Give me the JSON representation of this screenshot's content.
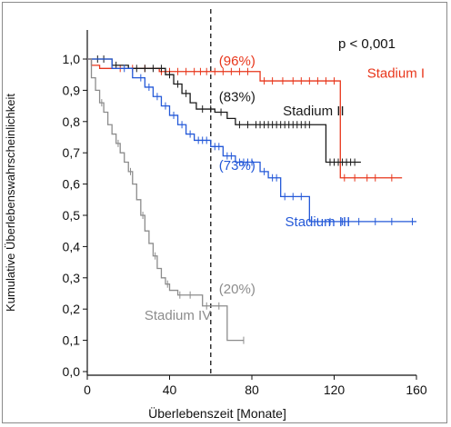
{
  "chart_data": {
    "type": "line",
    "subtype": "kaplan-meier survival curve",
    "xlabel": "Überlebenszeit [Monate]",
    "ylabel": "Kumulative Überlebenswahrscheinlichkeit",
    "xlim": [
      0,
      160
    ],
    "ylim": [
      0.0,
      1.0
    ],
    "x_ticks": [
      "0",
      "40",
      "80",
      "120",
      "160"
    ],
    "y_ticks": [
      "0,0",
      "0,1",
      "0,2",
      "0,3",
      "0,4",
      "0,5",
      "0,6",
      "0,7",
      "0,8",
      "0,9",
      "1,0"
    ],
    "grid": false,
    "reference_line": {
      "x": 60,
      "style": "dashed",
      "color": "#333333"
    },
    "p_value": "p < 0,001",
    "series": [
      {
        "name": "Stadium I",
        "color": "#e8361b",
        "label_pos": [
          150,
          0.94
        ],
        "annotation": {
          "text": "(96%)",
          "pos": [
            64,
            0.98
          ]
        },
        "steps": [
          [
            0,
            1.0
          ],
          [
            2,
            0.98
          ],
          [
            6,
            0.97
          ],
          [
            35,
            0.96
          ],
          [
            84,
            0.93
          ],
          [
            123,
            0.62
          ],
          [
            153,
            0.62
          ]
        ],
        "censor_x": [
          16,
          22,
          28,
          36,
          40,
          44,
          48,
          52,
          55,
          58,
          62,
          66,
          70,
          74,
          78,
          86,
          90,
          95,
          100,
          104,
          108,
          112,
          116,
          120,
          125,
          130,
          136,
          140,
          148
        ]
      },
      {
        "name": "Stadium II",
        "color": "#1a1a1a",
        "label_pos": [
          110,
          0.82
        ],
        "annotation": {
          "text": "(83%)",
          "pos": [
            64,
            0.865
          ]
        },
        "steps": [
          [
            0,
            1.0
          ],
          [
            12,
            0.98
          ],
          [
            20,
            0.97
          ],
          [
            38,
            0.95
          ],
          [
            42,
            0.92
          ],
          [
            46,
            0.89
          ],
          [
            50,
            0.86
          ],
          [
            53,
            0.84
          ],
          [
            62,
            0.83
          ],
          [
            68,
            0.81
          ],
          [
            72,
            0.79
          ],
          [
            110,
            0.79
          ],
          [
            116,
            0.67
          ],
          [
            133,
            0.67
          ]
        ],
        "censor_x": [
          5,
          8,
          14,
          24,
          28,
          32,
          36,
          40,
          44,
          48,
          56,
          60,
          65,
          74,
          78,
          82,
          84,
          86,
          88,
          90,
          92,
          94,
          96,
          98,
          100,
          102,
          104,
          106,
          108,
          118,
          120,
          122,
          124,
          126,
          128,
          130
        ]
      },
      {
        "name": "Stadium III",
        "color": "#2459d8",
        "label_pos": [
          112,
          0.465
        ],
        "annotation": {
          "text": "(73%)",
          "pos": [
            64,
            0.645
          ]
        },
        "steps": [
          [
            0,
            1.0
          ],
          [
            12,
            0.97
          ],
          [
            22,
            0.94
          ],
          [
            28,
            0.91
          ],
          [
            32,
            0.88
          ],
          [
            36,
            0.85
          ],
          [
            40,
            0.82
          ],
          [
            44,
            0.79
          ],
          [
            48,
            0.76
          ],
          [
            52,
            0.74
          ],
          [
            60,
            0.72
          ],
          [
            66,
            0.69
          ],
          [
            72,
            0.67
          ],
          [
            84,
            0.64
          ],
          [
            88,
            0.62
          ],
          [
            94,
            0.56
          ],
          [
            108,
            0.48
          ],
          [
            160,
            0.48
          ]
        ],
        "censor_x": [
          18,
          26,
          30,
          34,
          38,
          42,
          46,
          50,
          54,
          56,
          58,
          62,
          64,
          68,
          70,
          74,
          76,
          78,
          80,
          86,
          90,
          92,
          96,
          100,
          104,
          112,
          118,
          124,
          132,
          140,
          148,
          158
        ]
      },
      {
        "name": "Stadium IV",
        "color": "#8c8c8c",
        "label_pos": [
          44,
          0.165
        ],
        "annotation": {
          "text": "(20%)",
          "pos": [
            64,
            0.25
          ]
        },
        "steps": [
          [
            0,
            1.0
          ],
          [
            2,
            0.94
          ],
          [
            4,
            0.9
          ],
          [
            6,
            0.86
          ],
          [
            8,
            0.83
          ],
          [
            10,
            0.79
          ],
          [
            12,
            0.76
          ],
          [
            14,
            0.73
          ],
          [
            16,
            0.7
          ],
          [
            18,
            0.67
          ],
          [
            20,
            0.64
          ],
          [
            22,
            0.6
          ],
          [
            24,
            0.55
          ],
          [
            26,
            0.5
          ],
          [
            28,
            0.45
          ],
          [
            30,
            0.41
          ],
          [
            32,
            0.37
          ],
          [
            34,
            0.33
          ],
          [
            36,
            0.3
          ],
          [
            38,
            0.28
          ],
          [
            40,
            0.26
          ],
          [
            44,
            0.245
          ],
          [
            56,
            0.21
          ],
          [
            62,
            0.21
          ],
          [
            68,
            0.1
          ],
          [
            76,
            0.1
          ]
        ],
        "censor_x": [
          7,
          15,
          21,
          27,
          33,
          39,
          45,
          50,
          58,
          64,
          76
        ]
      }
    ]
  }
}
